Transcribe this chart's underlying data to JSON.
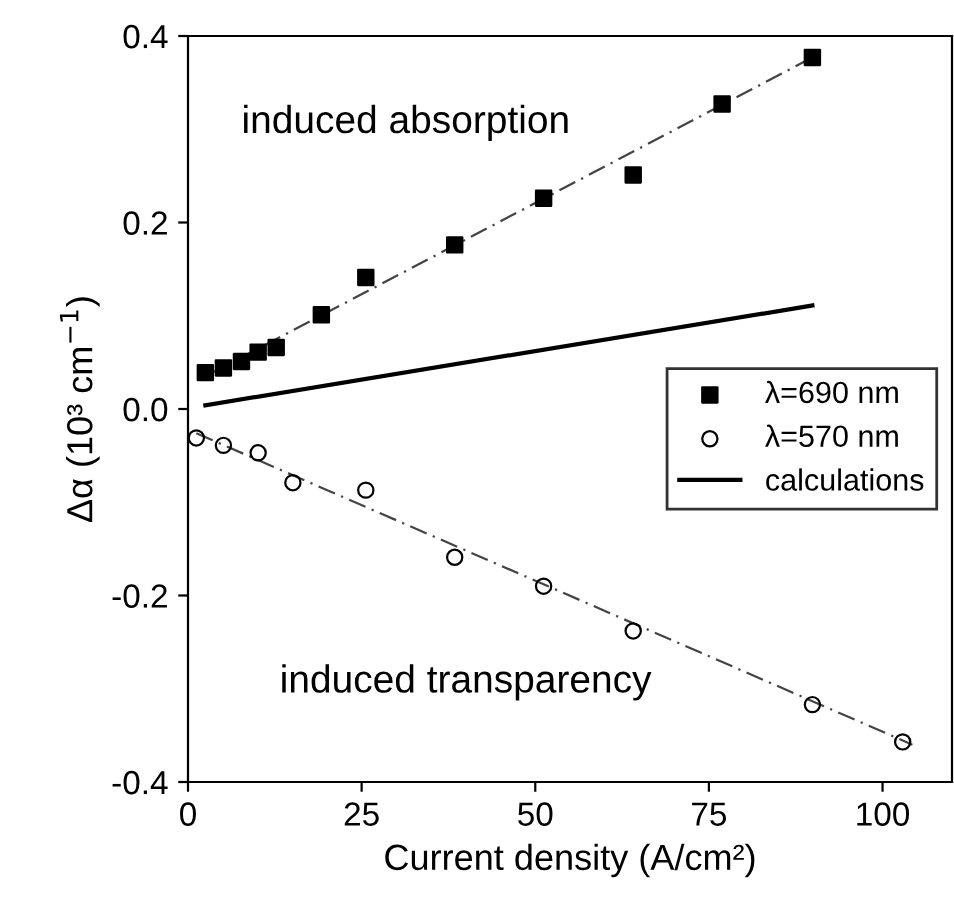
{
  "chart_data": {
    "type": "scatter",
    "xlabel": "Current density (A/cm²)",
    "ylabel": "Δα (10³ cm$^{−1}$)",
    "annotations": [
      "induced absorption",
      "induced transparency"
    ],
    "xlim": [
      0,
      110
    ],
    "xticks": [
      0,
      25,
      50,
      75,
      100
    ],
    "ylim": [
      -0.4,
      0.4
    ],
    "yticks": [
      {
        "value": -0.4,
        "label": "-0.4"
      },
      {
        "value": -0.2,
        "label": "-0.2"
      },
      {
        "value": 0,
        "label": "0.0"
      },
      {
        "value": 0.2,
        "label": "0.2"
      },
      {
        "value": 0.4,
        "label": "0.4"
      }
    ],
    "grid": false,
    "legend": "right",
    "series": [
      {
        "name": "λ=690 nm",
        "marker": "square",
        "color": "#000000",
        "x": [
          2.5,
          5.1,
          7.7,
          10.1,
          12.7,
          19.2,
          25.6,
          38.4,
          51.2,
          64.1,
          76.9,
          89.9
        ],
        "values": [
          0.039,
          0.044,
          0.051,
          0.061,
          0.066,
          0.101,
          0.141,
          0.176,
          0.226,
          0.251,
          0.327,
          0.377
        ]
      },
      {
        "name": "λ=570 nm",
        "marker": "circle",
        "color": "#000000",
        "x": [
          1.2,
          5.1,
          10.1,
          15.1,
          25.6,
          38.4,
          51.2,
          64.1,
          89.9,
          102.9
        ],
        "values": [
          -0.031,
          -0.039,
          -0.047,
          -0.079,
          -0.087,
          -0.159,
          -0.19,
          -0.238,
          -0.317,
          -0.357
        ]
      },
      {
        "name": "calculations",
        "type": "line",
        "line_style": "solid",
        "color": "#000000",
        "x": [
          2.5,
          89.9
        ],
        "values": [
          0.004,
          0.111
        ]
      },
      {
        "type": "line",
        "line_style": "dashed",
        "color": "#444444",
        "x": [
          2.5,
          89.9
        ],
        "values": [
          0.035,
          0.377
        ]
      },
      {
        "type": "line",
        "line_style": "dashed",
        "color": "#444444",
        "x": [
          1.2,
          104.3
        ],
        "values": [
          -0.026,
          -0.36
        ]
      }
    ]
  }
}
